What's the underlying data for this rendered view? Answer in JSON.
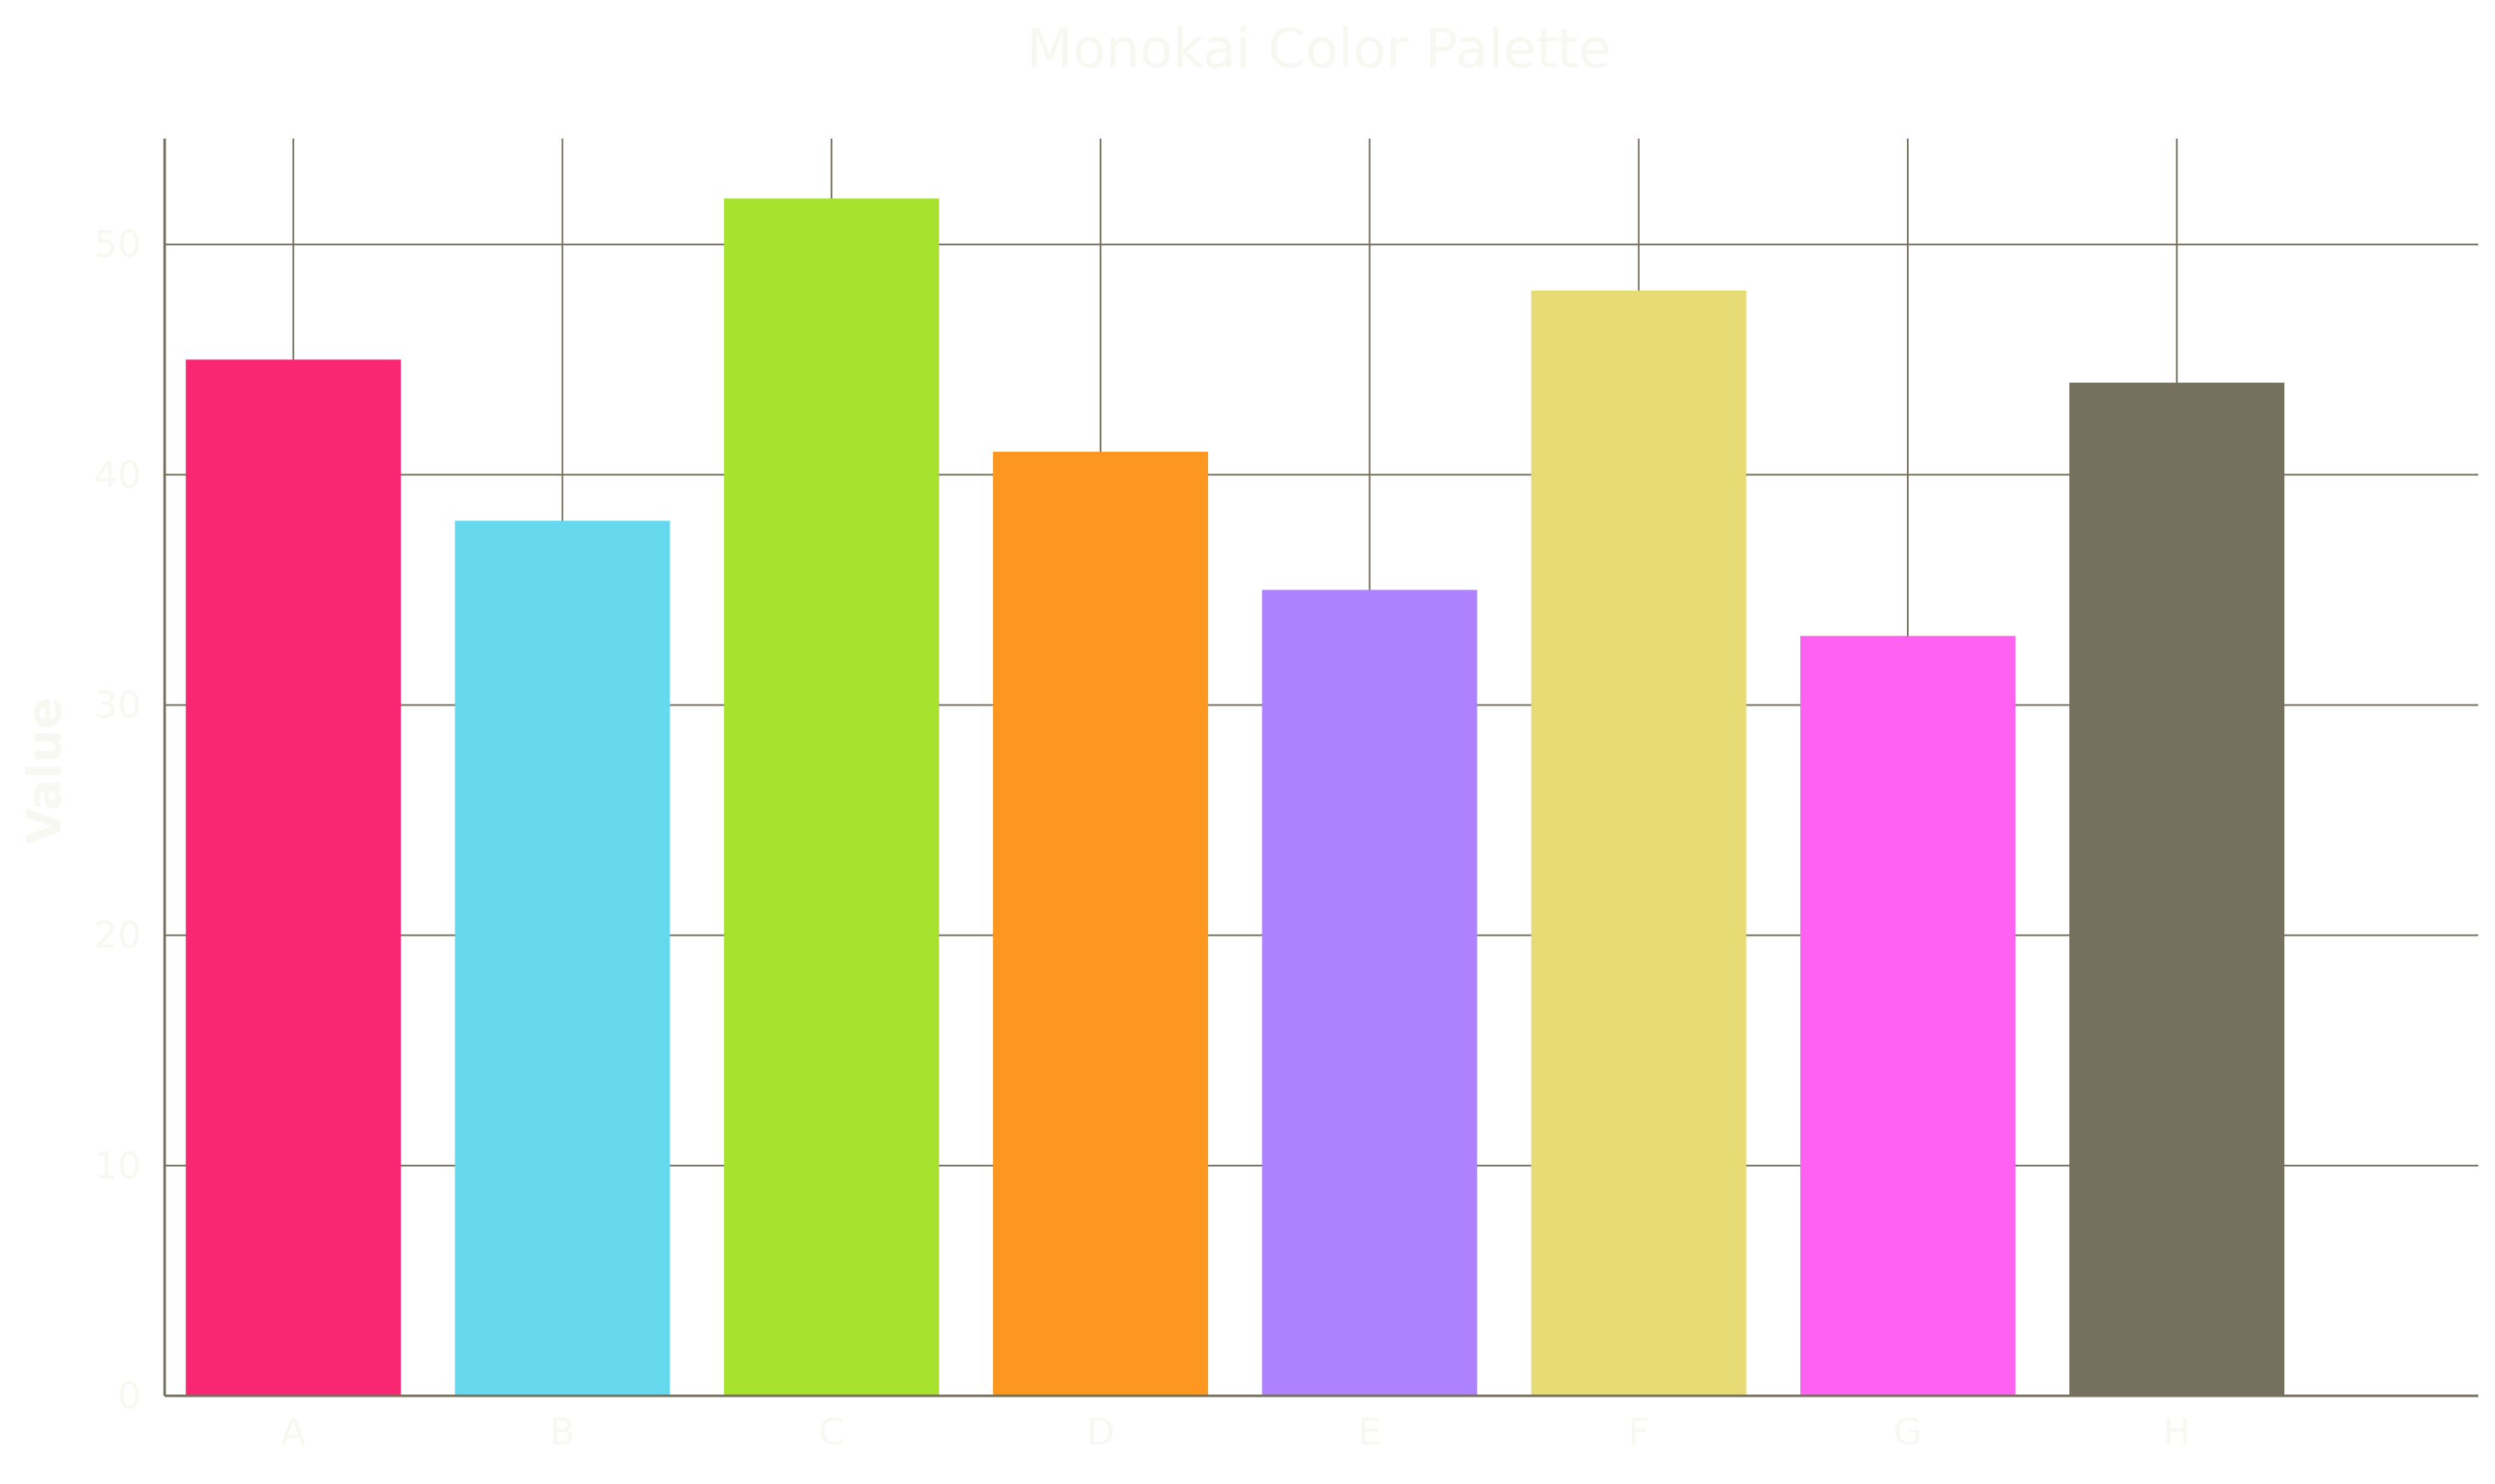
{
  "chart_data": {
    "type": "bar",
    "title": "Monokai Color Palette",
    "xlabel": "",
    "ylabel": "Value",
    "categories": [
      "A",
      "B",
      "C",
      "D",
      "E",
      "F",
      "G",
      "H"
    ],
    "values": [
      45,
      38,
      52,
      41,
      35,
      48,
      33,
      44
    ],
    "bar_colors": [
      "#F92672",
      "#66D9EF",
      "#A6E22E",
      "#FD971F",
      "#AE81FF",
      "#E6DB74",
      "#FF61F0",
      "#75715E"
    ],
    "ylim": [
      0,
      54.6
    ],
    "yticks": [
      0,
      10,
      20,
      30,
      40,
      50
    ],
    "grid": true,
    "colors": {
      "text": "#F8F8F2",
      "grid": "#75715E",
      "axis": "#75715E",
      "background": "#FFFFFF"
    }
  }
}
